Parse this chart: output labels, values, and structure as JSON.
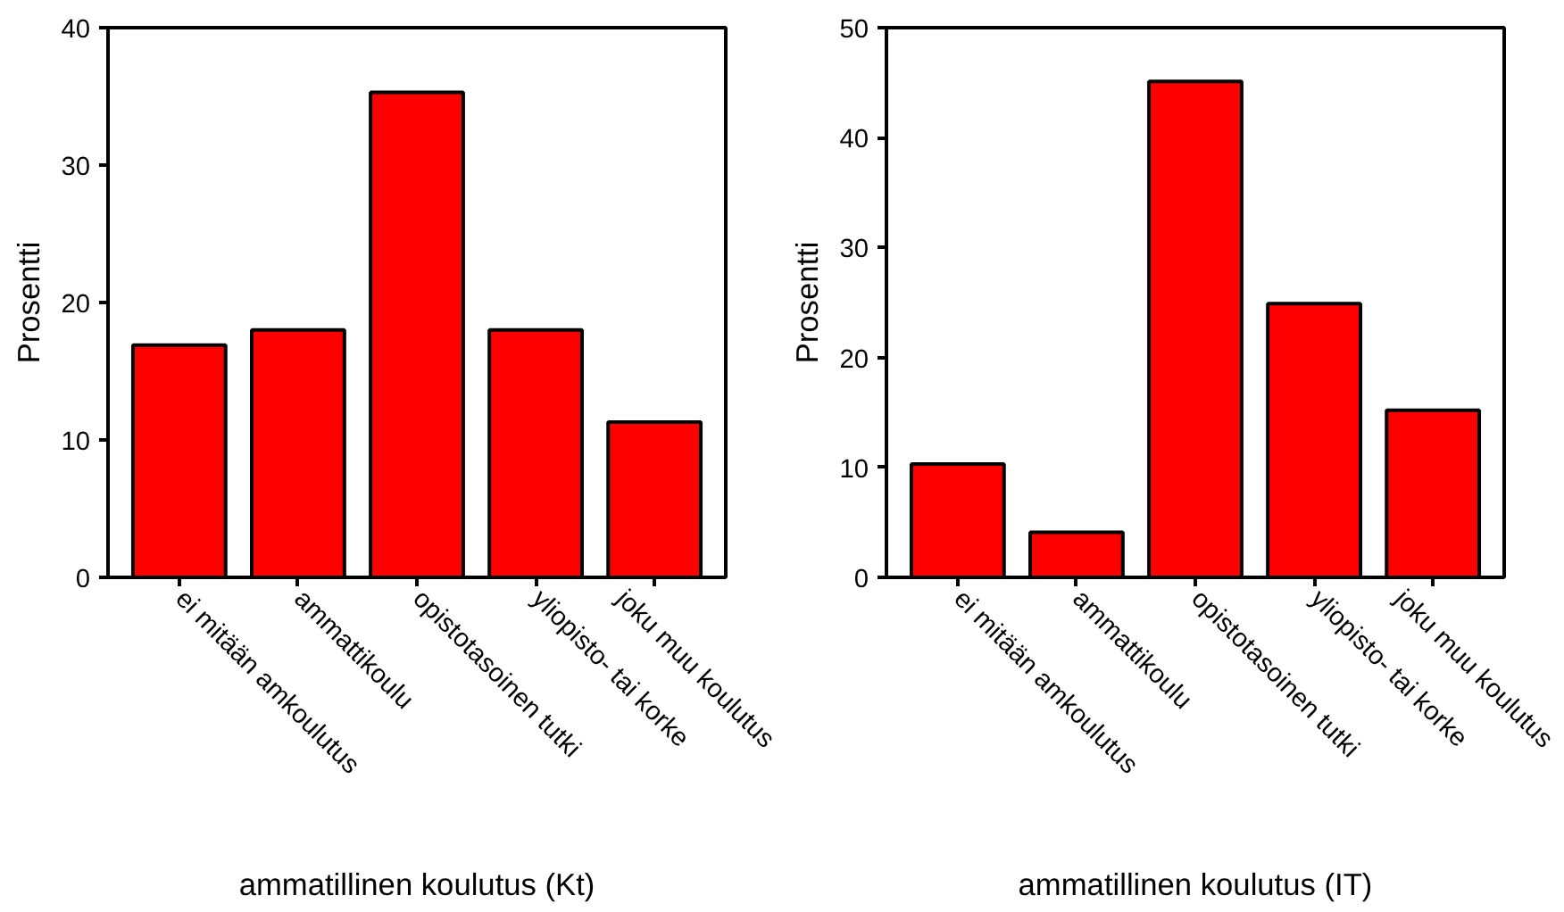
{
  "chart_data": [
    {
      "type": "bar",
      "xlabel": "ammatillinen koulutus (Kt)",
      "ylabel": "Prosentti",
      "categories": [
        "ei mitään amkoulutus",
        "ammattikoulu",
        "opistotasoinen tutki",
        "yliopisto- tai korke",
        "joku muu koulutus"
      ],
      "values": [
        16.9,
        18.0,
        35.3,
        18.0,
        11.3
      ],
      "color": "#ff0000",
      "ylim": [
        0,
        40
      ],
      "yticks": [
        0,
        10,
        20,
        30,
        40
      ],
      "grid": false
    },
    {
      "type": "bar",
      "xlabel": "ammatillinen koulutus (IT)",
      "ylabel": "Prosentti",
      "categories": [
        "ei mitään amkoulutus",
        "ammattikoulu",
        "opistotasoinen tutki",
        "yliopisto- tai korke",
        "joku muu koulutus"
      ],
      "values": [
        10.3,
        4.1,
        45.1,
        24.9,
        15.2
      ],
      "color": "#ff0000",
      "ylim": [
        0,
        50
      ],
      "yticks": [
        0,
        10,
        20,
        30,
        40,
        50
      ],
      "grid": false
    }
  ]
}
